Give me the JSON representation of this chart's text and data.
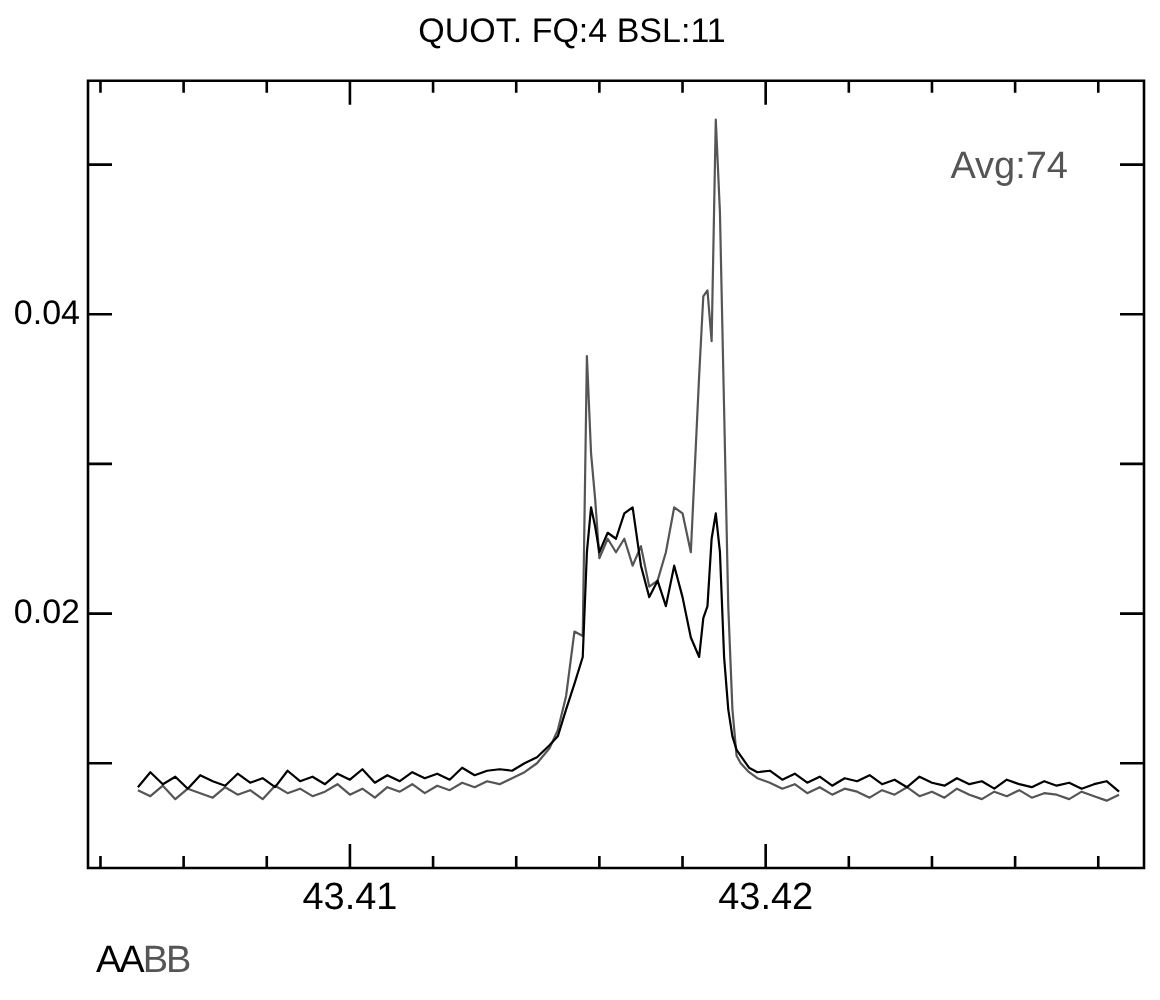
{
  "chart_data": {
    "type": "line",
    "title": "QUOT. FQ:4 BSL:11",
    "annotations": [
      "Avg:74"
    ],
    "x": [
      43.4049,
      43.4052,
      43.4055,
      43.4058,
      43.4061,
      43.4064,
      43.4067,
      43.407,
      43.4073,
      43.4076,
      43.4079,
      43.4082,
      43.4085,
      43.4088,
      43.4091,
      43.4094,
      43.4097,
      43.41,
      43.4103,
      43.4106,
      43.4109,
      43.4112,
      43.4115,
      43.4118,
      43.4121,
      43.4124,
      43.4127,
      43.413,
      43.4133,
      43.4136,
      43.4139,
      43.4142,
      43.4145,
      43.4148,
      43.415,
      43.4152,
      43.4154,
      43.4156,
      43.4157,
      43.4158,
      43.4159,
      43.416,
      43.4162,
      43.4164,
      43.4166,
      43.4168,
      43.417,
      43.4172,
      43.4174,
      43.4176,
      43.4178,
      43.418,
      43.4182,
      43.4184,
      43.4185,
      43.4186,
      43.4187,
      43.4188,
      43.4189,
      43.419,
      43.4191,
      43.4192,
      43.4193,
      43.4194,
      43.4196,
      43.4198,
      43.4201,
      43.4204,
      43.4207,
      43.421,
      43.4213,
      43.4216,
      43.4219,
      43.4222,
      43.4225,
      43.4228,
      43.4231,
      43.4234,
      43.4237,
      43.424,
      43.4243,
      43.4246,
      43.4249,
      43.4252,
      43.4255,
      43.4258,
      43.4261,
      43.4264,
      43.4267,
      43.427,
      43.4273,
      43.4276,
      43.4279,
      43.4282,
      43.4285
    ],
    "series": [
      {
        "name": "AA",
        "color": "#000000",
        "values": [
          0.0084,
          0.0094,
          0.0086,
          0.0091,
          0.0083,
          0.0092,
          0.0088,
          0.0085,
          0.0093,
          0.0087,
          0.009,
          0.0084,
          0.0095,
          0.0088,
          0.0091,
          0.0086,
          0.0093,
          0.0089,
          0.0096,
          0.0087,
          0.0092,
          0.0088,
          0.0094,
          0.009,
          0.0093,
          0.0089,
          0.0097,
          0.0092,
          0.0095,
          0.0096,
          0.0095,
          0.01,
          0.0104,
          0.0112,
          0.0118,
          0.0136,
          0.0153,
          0.0171,
          0.0241,
          0.0271,
          0.0258,
          0.0241,
          0.0254,
          0.025,
          0.0267,
          0.0271,
          0.0232,
          0.0211,
          0.0222,
          0.0205,
          0.0232,
          0.0211,
          0.0184,
          0.0171,
          0.0197,
          0.0205,
          0.025,
          0.0267,
          0.0241,
          0.0171,
          0.0136,
          0.0118,
          0.0109,
          0.0105,
          0.0097,
          0.0094,
          0.0095,
          0.0089,
          0.0093,
          0.0087,
          0.0091,
          0.0085,
          0.009,
          0.0088,
          0.0092,
          0.0086,
          0.0089,
          0.0084,
          0.0091,
          0.0087,
          0.0085,
          0.009,
          0.0086,
          0.0088,
          0.0083,
          0.0089,
          0.0086,
          0.0084,
          0.0088,
          0.0085,
          0.0087,
          0.0083,
          0.0086,
          0.0088,
          0.0081
        ]
      },
      {
        "name": "BB",
        "color": "#555555",
        "values": [
          0.0082,
          0.0078,
          0.0085,
          0.0076,
          0.0083,
          0.008,
          0.0077,
          0.0084,
          0.0079,
          0.0082,
          0.0076,
          0.0085,
          0.008,
          0.0083,
          0.0078,
          0.0081,
          0.0086,
          0.0079,
          0.0083,
          0.0077,
          0.0084,
          0.0081,
          0.0086,
          0.008,
          0.0085,
          0.0082,
          0.0087,
          0.0084,
          0.0088,
          0.0086,
          0.009,
          0.0094,
          0.01,
          0.011,
          0.0122,
          0.0145,
          0.0188,
          0.0185,
          0.0372,
          0.0307,
          0.0276,
          0.0237,
          0.025,
          0.0241,
          0.025,
          0.0232,
          0.0245,
          0.0218,
          0.0222,
          0.0241,
          0.0271,
          0.0267,
          0.0241,
          0.0359,
          0.0412,
          0.0416,
          0.0382,
          0.053,
          0.0468,
          0.0337,
          0.0205,
          0.0136,
          0.0105,
          0.01,
          0.0094,
          0.009,
          0.0087,
          0.0083,
          0.0086,
          0.008,
          0.0084,
          0.0079,
          0.0083,
          0.0081,
          0.0077,
          0.0082,
          0.0079,
          0.0084,
          0.0078,
          0.0081,
          0.0077,
          0.0083,
          0.0079,
          0.0076,
          0.0081,
          0.0078,
          0.0082,
          0.0077,
          0.008,
          0.0079,
          0.0076,
          0.0081,
          0.0078,
          0.0075,
          0.0079
        ]
      }
    ],
    "xlim": [
      43.4037,
      43.4291
    ],
    "xticks": [
      {
        "value": 43.404,
        "label": null
      },
      {
        "value": 43.406,
        "label": null
      },
      {
        "value": 43.408,
        "label": null
      },
      {
        "value": 43.41,
        "label": "43.41"
      },
      {
        "value": 43.412,
        "label": null
      },
      {
        "value": 43.414,
        "label": null
      },
      {
        "value": 43.416,
        "label": null
      },
      {
        "value": 43.418,
        "label": null
      },
      {
        "value": 43.42,
        "label": "43.42"
      },
      {
        "value": 43.422,
        "label": null
      },
      {
        "value": 43.424,
        "label": null
      },
      {
        "value": 43.426,
        "label": null
      },
      {
        "value": 43.428,
        "label": null
      }
    ],
    "ylim": [
      0.003,
      0.0556
    ],
    "yticks": [
      {
        "value": 0.01,
        "label": null
      },
      0.02,
      {
        "value": 0.03,
        "label": null
      },
      0.04,
      {
        "value": 0.05,
        "label": null
      }
    ],
    "grid": false,
    "legend": "bottom left",
    "marker": "none",
    "line_style": "solid"
  }
}
